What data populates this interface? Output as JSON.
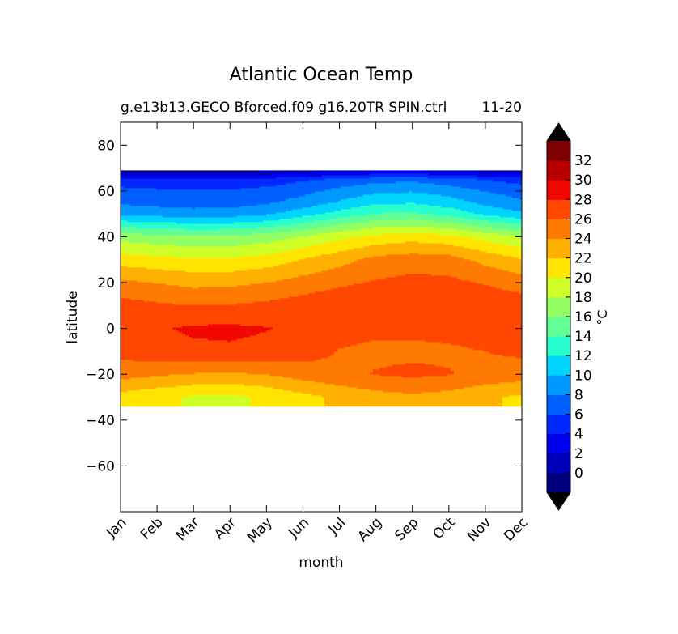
{
  "chart_data": {
    "type": "heatmap",
    "title": "Atlantic Ocean Temp",
    "subtitle_left": "g.e13b13.GECO Bforced.f09 g16.20TR SPIN.ctrl",
    "subtitle_right": "11-20",
    "xlabel": "month",
    "ylabel": "latitude",
    "x_categories": [
      "Jan",
      "Feb",
      "Mar",
      "Apr",
      "May",
      "Jun",
      "Jul",
      "Aug",
      "Sep",
      "Oct",
      "Nov",
      "Dec"
    ],
    "y_ticks": [
      80,
      60,
      40,
      20,
      0,
      -20,
      -40,
      -60
    ],
    "ylim": [
      -80,
      90
    ],
    "data_lat_range": [
      -34,
      69
    ],
    "colorbar": {
      "label": "°C",
      "tick_labels": [
        "0",
        "2",
        "4",
        "6",
        "8",
        "10",
        "12",
        "14",
        "16",
        "18",
        "20",
        "22",
        "24",
        "26",
        "28",
        "30",
        "32"
      ],
      "levels": [
        -2,
        0,
        2,
        4,
        6,
        8,
        10,
        12,
        14,
        16,
        18,
        20,
        22,
        24,
        26,
        28,
        30,
        32
      ],
      "colors": [
        "#00007f",
        "#0000b8",
        "#0000f1",
        "#0028ff",
        "#0060ff",
        "#0098ff",
        "#00d4ff",
        "#29ffce",
        "#62ff94",
        "#94ff62",
        "#ceff29",
        "#ffe500",
        "#ffb000",
        "#ff7a00",
        "#ff4700",
        "#f10800",
        "#b80000",
        "#7f0000"
      ],
      "under_color": "#000000",
      "over_color": "#000000"
    },
    "series": [
      {
        "name": "-30",
        "values": [
          21.2,
          20.5,
          19.8,
          19.6,
          20.3,
          21.4,
          22.4,
          23.2,
          23.6,
          23.2,
          22.3,
          21.6
        ]
      },
      {
        "name": "-20",
        "values": [
          24.8,
          24.3,
          23.9,
          23.7,
          24.1,
          24.9,
          25.6,
          26.1,
          26.4,
          26.1,
          25.4,
          25.0
        ]
      },
      {
        "name": "-10",
        "values": [
          26.8,
          27.2,
          27.6,
          27.7,
          27.4,
          26.9,
          25.9,
          25.6,
          25.6,
          25.7,
          26.0,
          26.4
        ]
      },
      {
        "name": "0",
        "values": [
          27.4,
          27.8,
          28.3,
          28.4,
          28.1,
          27.6,
          26.7,
          26.4,
          26.4,
          26.6,
          27.0,
          27.2
        ]
      },
      {
        "name": "10",
        "values": [
          26.8,
          26.3,
          26.0,
          26.1,
          26.5,
          27.0,
          27.5,
          27.7,
          27.9,
          27.8,
          27.5,
          27.1
        ]
      },
      {
        "name": "20",
        "values": [
          24.4,
          23.9,
          23.4,
          23.5,
          24.0,
          24.8,
          25.6,
          26.2,
          26.6,
          26.5,
          25.8,
          25.0
        ]
      },
      {
        "name": "30",
        "values": [
          21.1,
          20.6,
          20.3,
          20.3,
          20.9,
          22.1,
          23.3,
          24.6,
          25.1,
          24.8,
          23.4,
          22.1
        ]
      },
      {
        "name": "40",
        "values": [
          17.2,
          16.6,
          16.3,
          16.4,
          17.0,
          18.1,
          19.5,
          20.6,
          21.1,
          20.6,
          19.3,
          18.0
        ]
      },
      {
        "name": "50",
        "values": [
          9.6,
          9.2,
          8.9,
          9.0,
          9.7,
          11.2,
          12.8,
          14.1,
          14.3,
          13.3,
          11.6,
          10.4
        ]
      },
      {
        "name": "55",
        "values": [
          7.6,
          7.3,
          7.0,
          7.1,
          7.7,
          8.8,
          10.2,
          11.6,
          11.8,
          10.9,
          9.4,
          8.3
        ]
      },
      {
        "name": "60",
        "values": [
          6.6,
          6.3,
          6.1,
          6.2,
          6.6,
          7.4,
          8.6,
          9.6,
          9.8,
          9.1,
          7.9,
          7.1
        ]
      },
      {
        "name": "65",
        "values": [
          4.8,
          4.6,
          4.4,
          4.5,
          4.9,
          5.7,
          6.5,
          7.3,
          7.5,
          6.8,
          5.9,
          5.2
        ]
      },
      {
        "name": "69",
        "values": [
          -0.5,
          -0.6,
          -0.7,
          -0.6,
          -0.4,
          0.2,
          1.0,
          1.6,
          1.7,
          1.1,
          0.4,
          0.0
        ]
      }
    ],
    "grid": false,
    "legend_placement": "colorbar-right"
  }
}
